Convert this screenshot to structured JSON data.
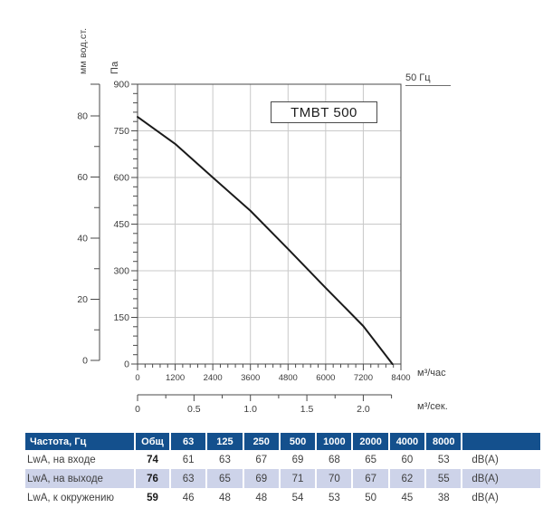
{
  "model": "TMBT 500",
  "frequency_note": "50 Гц",
  "colors": {
    "header_bg": "#14508D",
    "alt_row_bg": "#CDD3E9",
    "curve": "#1a1a1a",
    "grid": "#c9c9c9",
    "axis": "#4a4a4a",
    "text": "#3d3d3d"
  },
  "chart_data": {
    "type": "line",
    "title": "TMBT 500",
    "annotation": "50 Гц",
    "grid": true,
    "legend_position": "none",
    "series": [
      {
        "name": "TMBT 500, 50 Гц",
        "points": [
          [
            0,
            795
          ],
          [
            1200,
            708
          ],
          [
            2400,
            600
          ],
          [
            3600,
            493
          ],
          [
            4800,
            370
          ],
          [
            6000,
            245
          ],
          [
            7200,
            122
          ],
          [
            8130,
            0
          ]
        ]
      }
    ],
    "x_axis": {
      "label": "м³/час",
      "min": 0,
      "max": 8400,
      "major_ticks": [
        0,
        1200,
        2400,
        3600,
        4800,
        6000,
        7200,
        8400
      ],
      "minor_step": 240
    },
    "x_axis_secondary": {
      "label": "м³/сек.",
      "tick_values": [
        0,
        0.5,
        1,
        1.5,
        2
      ],
      "tick_labels": [
        "0",
        "0.5",
        "1.0",
        "1.5",
        "2.0"
      ],
      "minor_step": 0.25,
      "axis_end": 2.25
    },
    "y_axis": {
      "label": "Па",
      "min": 0,
      "max": 900,
      "major_ticks": [
        0,
        150,
        300,
        450,
        600,
        750,
        900
      ],
      "minor_step": 30
    },
    "y_axis_secondary": {
      "label": "мм вод.ст.",
      "major_ticks": [
        0,
        20,
        40,
        60,
        80
      ],
      "minor_step": 10
    }
  },
  "table": {
    "header": [
      "Частота, Гц",
      "Общ",
      "63",
      "125",
      "250",
      "500",
      "1000",
      "2000",
      "4000",
      "8000",
      ""
    ],
    "rows": [
      {
        "label": "LwA, на входе",
        "total": "74",
        "values": [
          "61",
          "63",
          "67",
          "69",
          "68",
          "65",
          "60",
          "53"
        ],
        "unit": "dB(A)"
      },
      {
        "label": "LwA, на выходе",
        "total": "76",
        "values": [
          "63",
          "65",
          "69",
          "71",
          "70",
          "67",
          "62",
          "55"
        ],
        "unit": "dB(A)"
      },
      {
        "label": "LwA, к окружению",
        "total": "59",
        "values": [
          "46",
          "48",
          "48",
          "54",
          "53",
          "50",
          "45",
          "38"
        ],
        "unit": "dB(A)"
      }
    ]
  }
}
